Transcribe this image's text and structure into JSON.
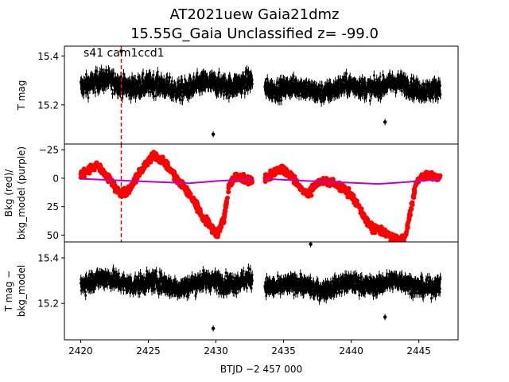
{
  "title_line1": "AT2021uew  Gaia21dmz",
  "title_line2": "15.55G_Gaia Unclassified z= -99.0",
  "chart_data": [
    {
      "type": "scatter",
      "panel": "top",
      "annotation": "s41 cam1ccd1",
      "xlabel": "",
      "ylabel": "T mag",
      "xlim": [
        2418.8,
        2447.9
      ],
      "ylim": [
        15.44,
        15.04
      ],
      "y_inverted": true,
      "yticks": [
        15.2,
        15.4
      ],
      "ytick_labels": [
        "15.2",
        "15.4"
      ],
      "series": [
        {
          "name": "T mag",
          "color": "#000000",
          "marker": "dot with error bars",
          "segments": [
            {
              "x_start": 2420.0,
              "x_end": 2432.7,
              "y_center": 15.28,
              "y_spread": 0.12
            },
            {
              "x_start": 2433.6,
              "x_end": 2446.6,
              "y_center": 15.27,
              "y_spread": 0.11
            }
          ],
          "outliers": [
            {
              "x": 2429.8,
              "y": 15.08
            },
            {
              "x": 2442.5,
              "y": 15.13
            },
            {
              "x": 2423.0,
              "y": 15.42
            }
          ]
        }
      ],
      "vline": {
        "x": 2423.0,
        "color": "#ff0000",
        "style": "dashed"
      }
    },
    {
      "type": "scatter",
      "panel": "middle",
      "xlabel": "",
      "ylabel": "Bkg (red)/\nbkg_model (purple)",
      "ylim": [
        -30,
        56
      ],
      "yticks": [
        -25,
        0,
        25,
        50
      ],
      "ytick_labels": [
        "−25",
        "0",
        "25",
        "50"
      ],
      "series": [
        {
          "name": "Bkg",
          "color": "#ff0000",
          "x": [
            2420.0,
            2420.6,
            2421.2,
            2421.8,
            2422.4,
            2423.0,
            2423.6,
            2424.2,
            2424.8,
            2425.4,
            2426.0,
            2426.6,
            2427.2,
            2427.8,
            2428.4,
            2429.0,
            2429.6,
            2430.1,
            2430.6,
            2431.0,
            2431.5,
            2432.0,
            2432.6,
            2433.6,
            2434.3,
            2435.0,
            2435.6,
            2436.2,
            2436.8,
            2437.4,
            2438.0,
            2438.6,
            2439.2,
            2439.8,
            2440.4,
            2441.0,
            2441.6,
            2442.2,
            2442.8,
            2443.4,
            2444.0,
            2444.4,
            2444.8,
            2445.2,
            2445.6,
            2446.0,
            2446.6
          ],
          "y": [
            -2,
            -8,
            -12,
            -4,
            5,
            14,
            10,
            -2,
            -12,
            -20,
            -16,
            -8,
            2,
            10,
            20,
            34,
            42,
            50,
            35,
            5,
            -2,
            0,
            2,
            -1,
            -5,
            -8,
            -2,
            8,
            14,
            6,
            2,
            4,
            8,
            12,
            22,
            36,
            44,
            46,
            50,
            54,
            52,
            28,
            5,
            -2,
            -3,
            -1,
            0
          ]
        },
        {
          "name": "bkg_model",
          "color": "#c000c0",
          "x": [
            2420.0,
            2422.0,
            2424.0,
            2426.0,
            2428.0,
            2430.0,
            2432.7,
            2433.6,
            2436.0,
            2438.0,
            2440.0,
            2442.0,
            2444.0,
            2446.6
          ],
          "y": [
            0.5,
            1.5,
            2.5,
            3.5,
            4.5,
            2.5,
            0.8,
            0.5,
            2.0,
            3.0,
            4.0,
            5.0,
            3.5,
            1.0
          ]
        }
      ],
      "vline": {
        "x": 2423.0,
        "color": "#ff0000",
        "style": "dashed"
      }
    },
    {
      "type": "scatter",
      "panel": "bottom",
      "xlabel": "BTJD −2 457 000",
      "ylabel": "T mag −\nbkg_model",
      "ylim": [
        15.47,
        15.04
      ],
      "y_inverted": true,
      "yticks": [
        15.2,
        15.4
      ],
      "ytick_labels": [
        "15.2",
        "15.4"
      ],
      "xticks": [
        2420,
        2425,
        2430,
        2435,
        2440,
        2445
      ],
      "xtick_labels": [
        "2420",
        "2425",
        "2430",
        "2435",
        "2440",
        "2445"
      ],
      "series": [
        {
          "name": "T mag − bkg_model",
          "color": "#000000",
          "marker": "dot with error bars",
          "segments": [
            {
              "x_start": 2420.0,
              "x_end": 2432.7,
              "y_center": 15.29,
              "y_spread": 0.12
            },
            {
              "x_start": 2433.6,
              "x_end": 2446.6,
              "y_center": 15.28,
              "y_spread": 0.11
            }
          ],
          "outliers": [
            {
              "x": 2429.8,
              "y": 15.09
            },
            {
              "x": 2442.5,
              "y": 15.14
            },
            {
              "x": 2437.0,
              "y": 15.46
            }
          ]
        }
      ]
    }
  ]
}
